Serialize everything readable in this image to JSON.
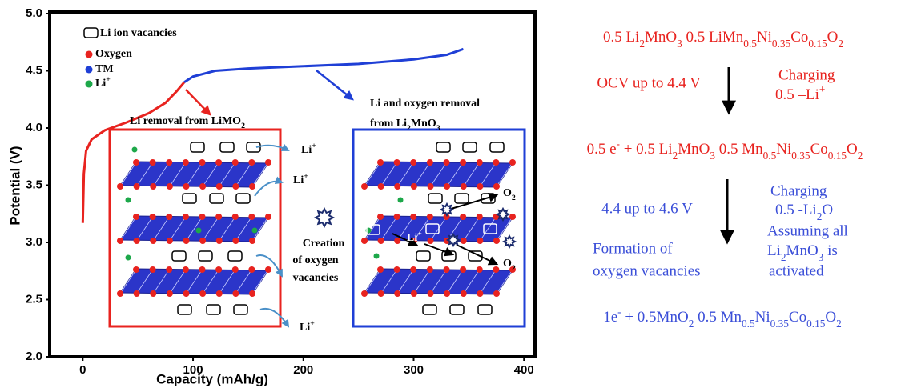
{
  "chart_data": {
    "type": "line",
    "xlabel": "Capacity (mAh/g)",
    "ylabel": "Potential (V)",
    "xlim": [
      -30,
      410
    ],
    "ylim": [
      2.0,
      5.0
    ],
    "xticks": [
      0,
      100,
      200,
      300,
      400
    ],
    "yticks": [
      {
        "value": 2,
        "label": "2.0"
      },
      {
        "value": 2.5,
        "label": "2.5"
      },
      {
        "value": 3,
        "label": "3.0"
      },
      {
        "value": 3.5,
        "label": "3.5"
      },
      {
        "value": 4,
        "label": "4.0"
      },
      {
        "value": 4.5,
        "label": "4.5"
      },
      {
        "value": 5,
        "label": "5.0"
      }
    ],
    "series": [
      {
        "color": "#e8231f",
        "x": [
          0,
          1,
          3,
          8,
          20,
          40,
          60,
          75,
          85,
          92
        ],
        "values": [
          3.17,
          3.6,
          3.8,
          3.9,
          3.98,
          4.05,
          4.13,
          4.22,
          4.32,
          4.4
        ]
      },
      {
        "color": "#1f3fd6",
        "x": [
          92,
          100,
          120,
          150,
          200,
          250,
          300,
          330,
          345
        ],
        "values": [
          4.4,
          4.45,
          4.5,
          4.52,
          4.54,
          4.56,
          4.6,
          4.64,
          4.69
        ]
      }
    ],
    "legend_items": [
      "Li ion vacancies",
      "Oxygen",
      "TM",
      [
        "Li",
        {
          "sup": "+"
        }
      ]
    ],
    "annotations": [
      [
        "Li removal from LiMO",
        {
          "sub": "2"
        }
      ],
      "Li and oxygen removal",
      [
        "from Li",
        {
          "sub": "2"
        },
        "MnO",
        {
          "sub": "3"
        }
      ],
      [
        "Li",
        {
          "sup": "+"
        }
      ],
      [
        "Li",
        {
          "sup": "+"
        }
      ],
      [
        "Li",
        {
          "sup": "+"
        }
      ],
      "Creation",
      "of oxygen",
      "vacancies",
      [
        "O",
        {
          "sub": "2"
        }
      ],
      [
        "O",
        {
          "sub": "2"
        }
      ],
      [
        "Li",
        {
          "sup": "+"
        }
      ]
    ]
  },
  "scheme": [
    [
      "0.5 Li",
      {
        "sub": "2"
      },
      "MnO",
      {
        "sub": "3"
      },
      " 0.5 LiMn",
      {
        "sub": "0.5"
      },
      "Ni",
      {
        "sub": "0.35"
      },
      "Co",
      {
        "sub": "0.15"
      },
      "O",
      {
        "sub": "2"
      }
    ],
    "OCV up to 4.4 V",
    "Charging",
    [
      "0.5 –Li",
      {
        "sup": "+"
      }
    ],
    [
      "0.5 e",
      {
        "sup": "-"
      },
      " + 0.5 Li",
      {
        "sub": "2"
      },
      "MnO",
      {
        "sub": "3"
      },
      " 0.5 Mn",
      {
        "sub": "0.5"
      },
      "Ni",
      {
        "sub": "0.35"
      },
      "Co",
      {
        "sub": "0.15"
      },
      "O",
      {
        "sub": "2"
      }
    ],
    "4.4 up to 4.6 V",
    "Charging",
    [
      "0.5 -Li",
      {
        "sub": "2"
      },
      "O"
    ],
    "Assuming all",
    [
      "Li",
      {
        "sub": "2"
      },
      "MnO",
      {
        "sub": "3"
      },
      " is"
    ],
    "activated",
    "Formation of",
    "oxygen vacancies",
    [
      "1e",
      {
        "sup": "-"
      },
      " + 0.5MnO",
      {
        "sub": "2"
      },
      " 0.5 Mn",
      {
        "sub": "0.5"
      },
      "Ni",
      {
        "sub": "0.35"
      },
      "Co",
      {
        "sub": "0.15"
      },
      "O",
      {
        "sub": "2"
      }
    ]
  ]
}
